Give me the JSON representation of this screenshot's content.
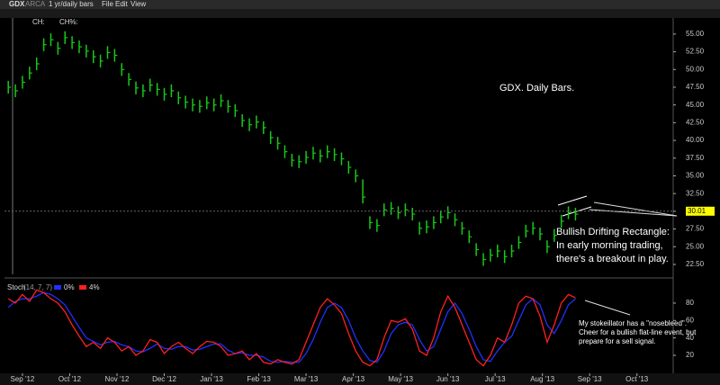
{
  "toolbar": {
    "symbol": "GDX",
    "exchange": "ARCA",
    "period": "1 yr/daily bars",
    "menu": [
      "File",
      "Edit",
      "View"
    ],
    "fields": [
      "CH:",
      "CH%:"
    ]
  },
  "chart_data": [
    {
      "type": "ohlc",
      "title": "GDX. Daily Bars.",
      "color": "#18c818",
      "annotation": [
        "Bullish Drifting Rectangle:",
        "In early morning trading,",
        "there's a breakout in play."
      ],
      "last_price": {
        "value": 30.01,
        "label": "30.01"
      },
      "xlim": [
        -0.38,
        13.71
      ],
      "ylim": [
        21.1,
        56
      ],
      "yticks": [
        {
          "value": 22.5,
          "label": "22.50"
        },
        {
          "value": 25,
          "label": "25.00"
        },
        {
          "value": 27.5,
          "label": "27.50"
        },
        {
          "value": 30,
          "label": "30.00"
        },
        {
          "value": 32.5,
          "label": "32.50"
        },
        {
          "value": 35,
          "label": "35.00"
        },
        {
          "value": 37.5,
          "label": "37.50"
        },
        {
          "value": 40,
          "label": "40.00"
        },
        {
          "value": 42.5,
          "label": "42.50"
        },
        {
          "value": 45,
          "label": "45.00"
        },
        {
          "value": 47.5,
          "label": "47.50"
        },
        {
          "value": 50,
          "label": "50.00"
        },
        {
          "value": 52.5,
          "label": "52.50"
        },
        {
          "value": 55,
          "label": "55.00"
        }
      ],
      "x": [
        -0.3,
        -0.15,
        0,
        0.15,
        0.3,
        0.45,
        0.6,
        0.75,
        0.9,
        1.05,
        1.2,
        1.35,
        1.5,
        1.65,
        1.8,
        1.95,
        2.1,
        2.25,
        2.4,
        2.55,
        2.7,
        2.85,
        3.0,
        3.15,
        3.3,
        3.45,
        3.6,
        3.75,
        3.9,
        4.05,
        4.2,
        4.35,
        4.5,
        4.65,
        4.8,
        4.95,
        5.1,
        5.25,
        5.4,
        5.55,
        5.7,
        5.85,
        6.0,
        6.15,
        6.3,
        6.45,
        6.6,
        6.75,
        6.9,
        7.05,
        7.2,
        7.35,
        7.5,
        7.65,
        7.8,
        7.95,
        8.1,
        8.25,
        8.4,
        8.55,
        8.7,
        8.85,
        9.0,
        9.15,
        9.3,
        9.45,
        9.6,
        9.75,
        9.9,
        10.05,
        10.2,
        10.35,
        10.5,
        10.65,
        10.8,
        10.95,
        11.1,
        11.25,
        11.4,
        11.55,
        11.7
      ],
      "high": [
        48.4,
        47.9,
        49.1,
        50.4,
        51.7,
        54.4,
        55.1,
        53.9,
        55.4,
        54.7,
        54.1,
        53.5,
        52.7,
        52.1,
        53.3,
        52.9,
        50.9,
        49.5,
        48.3,
        47.9,
        48.7,
        48.1,
        47.4,
        47.9,
        46.9,
        46.3,
        45.9,
        45.7,
        46.2,
        45.9,
        46.5,
        45.7,
        45.1,
        43.7,
        43.1,
        43.5,
        42.7,
        41.3,
        40.5,
        39.3,
        38.1,
        37.9,
        38.5,
        39.1,
        38.7,
        39.3,
        38.9,
        38.3,
        37.1,
        35.9,
        34.5,
        29.3,
        28.9,
        31.1,
        31.3,
        30.7,
        31.1,
        30.5,
        28.5,
        28.7,
        29.3,
        30.1,
        30.7,
        29.7,
        28.5,
        27.3,
        25.5,
        24.1,
        24.7,
        25.3,
        24.5,
        25.3,
        26.5,
        28.1,
        28.5,
        27.7,
        25.9,
        27.5,
        29.5,
        30.7,
        30.5
      ],
      "low": [
        46.6,
        46.1,
        47.3,
        48.6,
        49.9,
        52.6,
        53.3,
        52.1,
        53.6,
        52.9,
        52.3,
        51.7,
        50.9,
        50.3,
        51.5,
        51.1,
        49.1,
        47.7,
        46.5,
        46.1,
        46.9,
        46.3,
        45.6,
        46.1,
        45.1,
        44.5,
        44.1,
        43.9,
        44.4,
        44.1,
        44.7,
        43.9,
        43.3,
        41.9,
        41.3,
        41.7,
        40.9,
        39.5,
        38.7,
        37.5,
        36.3,
        36.1,
        36.7,
        37.3,
        36.9,
        37.5,
        37.1,
        36.5,
        35.3,
        34.1,
        31.1,
        27.5,
        27.1,
        29.3,
        29.5,
        28.9,
        29.3,
        28.7,
        26.7,
        26.9,
        27.5,
        28.3,
        28.9,
        27.9,
        26.7,
        25.5,
        23.7,
        22.3,
        22.9,
        23.5,
        22.7,
        23.5,
        24.7,
        26.3,
        26.7,
        25.9,
        24.1,
        25.7,
        27.7,
        28.9,
        28.7
      ],
      "close": [
        47.5,
        47.0,
        48.2,
        49.5,
        50.8,
        53.5,
        54.2,
        53.0,
        54.5,
        53.8,
        53.2,
        52.6,
        51.8,
        51.2,
        52.4,
        52.0,
        50.0,
        48.6,
        47.4,
        47.0,
        47.8,
        47.2,
        46.5,
        47.0,
        46.0,
        45.4,
        45.0,
        44.8,
        45.3,
        45.0,
        45.6,
        44.8,
        44.2,
        42.8,
        42.2,
        42.6,
        41.8,
        40.4,
        39.6,
        38.4,
        37.2,
        37.0,
        37.6,
        38.2,
        37.8,
        38.4,
        38.0,
        37.4,
        36.2,
        35.0,
        32.0,
        28.4,
        28.0,
        30.2,
        30.4,
        29.8,
        30.2,
        29.6,
        27.6,
        27.8,
        28.4,
        29.2,
        29.8,
        28.8,
        27.6,
        26.4,
        24.6,
        23.2,
        23.8,
        24.4,
        23.6,
        24.4,
        25.6,
        27.2,
        27.6,
        26.8,
        25.0,
        26.6,
        28.6,
        29.8,
        29.6
      ]
    },
    {
      "type": "line",
      "title": "Stoch",
      "subtitle": "(14, 7, 7)",
      "annotation": [
        "My stokeillator has a \"nosebleed\".",
        "Cheer for a bullish flat-line event, but",
        "prepare for a sell signal."
      ],
      "xlim": [
        -0.38,
        13.71
      ],
      "ylim": [
        4.5,
        102.7
      ],
      "yticks": [
        20,
        40,
        60,
        80
      ],
      "xticks": [
        {
          "value": 0,
          "label": "Sep '12"
        },
        {
          "value": 1,
          "label": "Oct '12"
        },
        {
          "value": 2,
          "label": "Nov '12"
        },
        {
          "value": 3,
          "label": "Dec '12"
        },
        {
          "value": 4,
          "label": "Jan '13"
        },
        {
          "value": 5,
          "label": "Feb '13"
        },
        {
          "value": 6,
          "label": "Mar '13"
        },
        {
          "value": 7,
          "label": "Apr '13"
        },
        {
          "value": 8,
          "label": "May '13"
        },
        {
          "value": 9,
          "label": "Jun '13"
        },
        {
          "value": 10,
          "label": "Jul '13"
        },
        {
          "value": 11,
          "label": "Aug '13"
        },
        {
          "value": 12,
          "label": "Sep '13"
        },
        {
          "value": 13,
          "label": "Oct '13"
        }
      ],
      "x": [
        -0.3,
        -0.15,
        0,
        0.15,
        0.3,
        0.45,
        0.6,
        0.75,
        0.9,
        1.05,
        1.2,
        1.35,
        1.5,
        1.65,
        1.8,
        1.95,
        2.1,
        2.25,
        2.4,
        2.55,
        2.7,
        2.85,
        3.0,
        3.15,
        3.3,
        3.45,
        3.6,
        3.75,
        3.9,
        4.05,
        4.2,
        4.35,
        4.5,
        4.65,
        4.8,
        4.95,
        5.1,
        5.25,
        5.4,
        5.55,
        5.7,
        5.85,
        6.0,
        6.15,
        6.3,
        6.45,
        6.6,
        6.75,
        6.9,
        7.05,
        7.2,
        7.35,
        7.5,
        7.65,
        7.8,
        7.95,
        8.1,
        8.25,
        8.4,
        8.55,
        8.7,
        8.85,
        9.0,
        9.15,
        9.3,
        9.45,
        9.6,
        9.75,
        9.9,
        10.05,
        10.2,
        10.35,
        10.5,
        10.65,
        10.8,
        10.95,
        11.1,
        11.25,
        11.4,
        11.55,
        11.7
      ],
      "series": [
        {
          "name": "0%",
          "color": "#2030ff",
          "values": [
            75,
            82,
            85,
            85,
            88,
            92,
            90,
            85,
            78,
            65,
            52,
            40,
            36,
            32,
            35,
            36,
            32,
            30,
            25,
            24,
            28,
            33,
            28,
            27,
            30,
            30,
            26,
            27,
            30,
            33,
            33,
            26,
            22,
            23,
            20,
            20,
            18,
            13,
            12,
            13,
            12,
            12,
            22,
            38,
            58,
            75,
            80,
            75,
            60,
            40,
            25,
            14,
            12,
            25,
            45,
            55,
            58,
            55,
            38,
            25,
            30,
            50,
            70,
            80,
            68,
            50,
            30,
            15,
            13,
            25,
            35,
            42,
            60,
            78,
            85,
            78,
            55,
            45,
            60,
            78,
            85
          ]
        },
        {
          "name": "4%",
          "color": "#ff2020",
          "values": [
            85,
            80,
            90,
            82,
            95,
            92,
            85,
            80,
            70,
            55,
            42,
            30,
            35,
            28,
            40,
            35,
            25,
            30,
            20,
            25,
            38,
            35,
            22,
            30,
            35,
            28,
            22,
            30,
            36,
            35,
            30,
            20,
            22,
            25,
            15,
            22,
            12,
            10,
            15,
            12,
            10,
            15,
            35,
            55,
            75,
            85,
            78,
            68,
            45,
            25,
            12,
            8,
            15,
            40,
            60,
            58,
            62,
            50,
            25,
            20,
            40,
            70,
            88,
            75,
            55,
            35,
            15,
            8,
            20,
            40,
            35,
            55,
            80,
            88,
            85,
            65,
            35,
            55,
            80,
            90,
            86
          ]
        }
      ]
    }
  ]
}
